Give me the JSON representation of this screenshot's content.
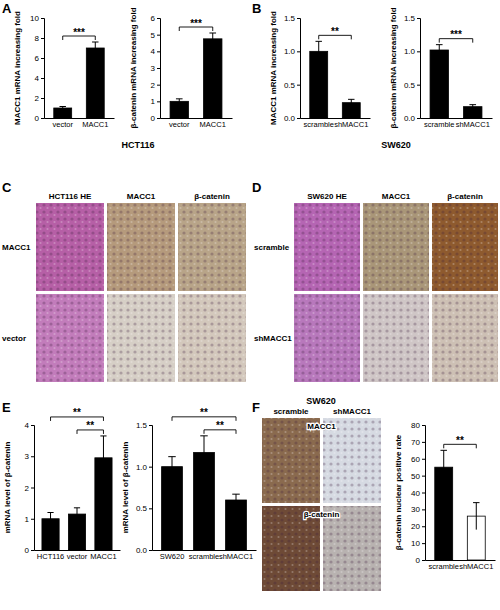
{
  "figure": {
    "panel_labels": [
      "A",
      "B",
      "C",
      "D",
      "E",
      "F"
    ]
  },
  "chart_data": [
    {
      "type": "bar",
      "ylabel": "MACC1 mRNA increasing fold",
      "categories": [
        "vector",
        "MACC1"
      ],
      "values": [
        1.0,
        7.0
      ],
      "errors": [
        0.15,
        0.6
      ],
      "color": "#000000",
      "ylim": [
        0,
        10
      ],
      "yticks": [
        0,
        2,
        4,
        6,
        8,
        10
      ],
      "annotations": [
        {
          "text": "***",
          "from": 0,
          "to": 1
        }
      ]
    },
    {
      "type": "bar",
      "ylabel": "β-catenin mRNA increasing fold",
      "xlabel": "HCT116",
      "categories": [
        "vector",
        "MACC1"
      ],
      "values": [
        1.0,
        4.75
      ],
      "errors": [
        0.15,
        0.35
      ],
      "color": "#000000",
      "ylim": [
        0,
        6
      ],
      "yticks": [
        0,
        1,
        2,
        3,
        4,
        5,
        6
      ],
      "annotations": [
        {
          "text": "***",
          "from": 0,
          "to": 1
        }
      ]
    },
    {
      "type": "bar",
      "ylabel": "MACC1 mRNA increasing fold",
      "categories": [
        "scramble",
        "shMACC1"
      ],
      "values": [
        1.0,
        0.23
      ],
      "errors": [
        0.15,
        0.05
      ],
      "color": "#000000",
      "ylim": [
        0,
        1.5
      ],
      "yticks": [
        {
          "value": 0,
          "label": "0.0"
        },
        {
          "value": 0.5,
          "label": "0.5"
        },
        {
          "value": 1,
          "label": "1.0"
        },
        {
          "value": 1.5,
          "label": "1.5"
        }
      ],
      "annotations": [
        {
          "text": "**",
          "from": 0,
          "to": 1
        }
      ]
    },
    {
      "type": "bar",
      "ylabel": "β-catenin mRNA increasing fold",
      "xlabel": "SW620",
      "categories": [
        "scramble",
        "shMACC1"
      ],
      "values": [
        1.02,
        0.17
      ],
      "errors": [
        0.08,
        0.03
      ],
      "color": "#000000",
      "ylim": [
        0,
        1.5
      ],
      "yticks": [
        {
          "value": 0,
          "label": "0.0"
        },
        {
          "value": 0.5,
          "label": "0.5"
        },
        {
          "value": 1,
          "label": "1.0"
        },
        {
          "value": 1.5,
          "label": "1.5"
        }
      ],
      "annotations": [
        {
          "text": "***",
          "from": 0,
          "to": 1
        }
      ]
    },
    {
      "type": "bar",
      "ylabel": "mRNA level of β-catenin",
      "categories": [
        "HCT116",
        "vector",
        "MACC1"
      ],
      "values": [
        1.0,
        1.15,
        2.95
      ],
      "errors": [
        0.2,
        0.2,
        0.7
      ],
      "color": "#000000",
      "ylim": [
        0,
        4
      ],
      "yticks": [
        0,
        1,
        2,
        3,
        4
      ],
      "annotations": [
        {
          "text": "**",
          "from": 1,
          "to": 2
        },
        {
          "text": "**",
          "from": 0,
          "to": 2
        }
      ]
    },
    {
      "type": "bar",
      "ylabel": "mRNA level of β-catenin",
      "categories": [
        "SW620",
        "scramble",
        "shMACC1"
      ],
      "values": [
        1.0,
        1.17,
        0.6
      ],
      "errors": [
        0.12,
        0.2,
        0.07
      ],
      "color": "#000000",
      "ylim": [
        0,
        1.5
      ],
      "yticks": [
        {
          "value": 0,
          "label": "0.0"
        },
        {
          "value": 0.5,
          "label": "0.5"
        },
        {
          "value": 1,
          "label": "1.0"
        },
        {
          "value": 1.5,
          "label": "1.5"
        }
      ],
      "annotations": [
        {
          "text": "**",
          "from": 1,
          "to": 2
        },
        {
          "text": "**",
          "from": 0,
          "to": 2
        }
      ]
    },
    {
      "type": "bar",
      "ylabel": "β-catenin nuclear positive rate",
      "categories": [
        "scramble",
        "shMACC1"
      ],
      "values": [
        55,
        26
      ],
      "errors": [
        10,
        8
      ],
      "colors": [
        "#000000",
        "#ffffff"
      ],
      "ylim": [
        0,
        80
      ],
      "yticks": [
        0,
        10,
        20,
        30,
        40,
        50,
        60,
        70,
        80
      ],
      "annotations": [
        {
          "text": "**",
          "from": 0,
          "to": 1
        }
      ]
    }
  ],
  "image_panels": [
    {
      "column_labels": [
        "HCT116 HE",
        "MACC1",
        "β-catenin"
      ],
      "row_labels": [
        "MACC1",
        "vector"
      ]
    },
    {
      "column_labels": [
        "SW620 HE",
        "MACC1",
        "β-catenin"
      ],
      "row_labels": [
        "scramble",
        "shMACC1"
      ]
    },
    {
      "title": "SW620",
      "column_labels": [
        "scramble",
        "shMACC1"
      ],
      "row_labels": [
        "MACC1",
        "β-catenin"
      ]
    }
  ]
}
